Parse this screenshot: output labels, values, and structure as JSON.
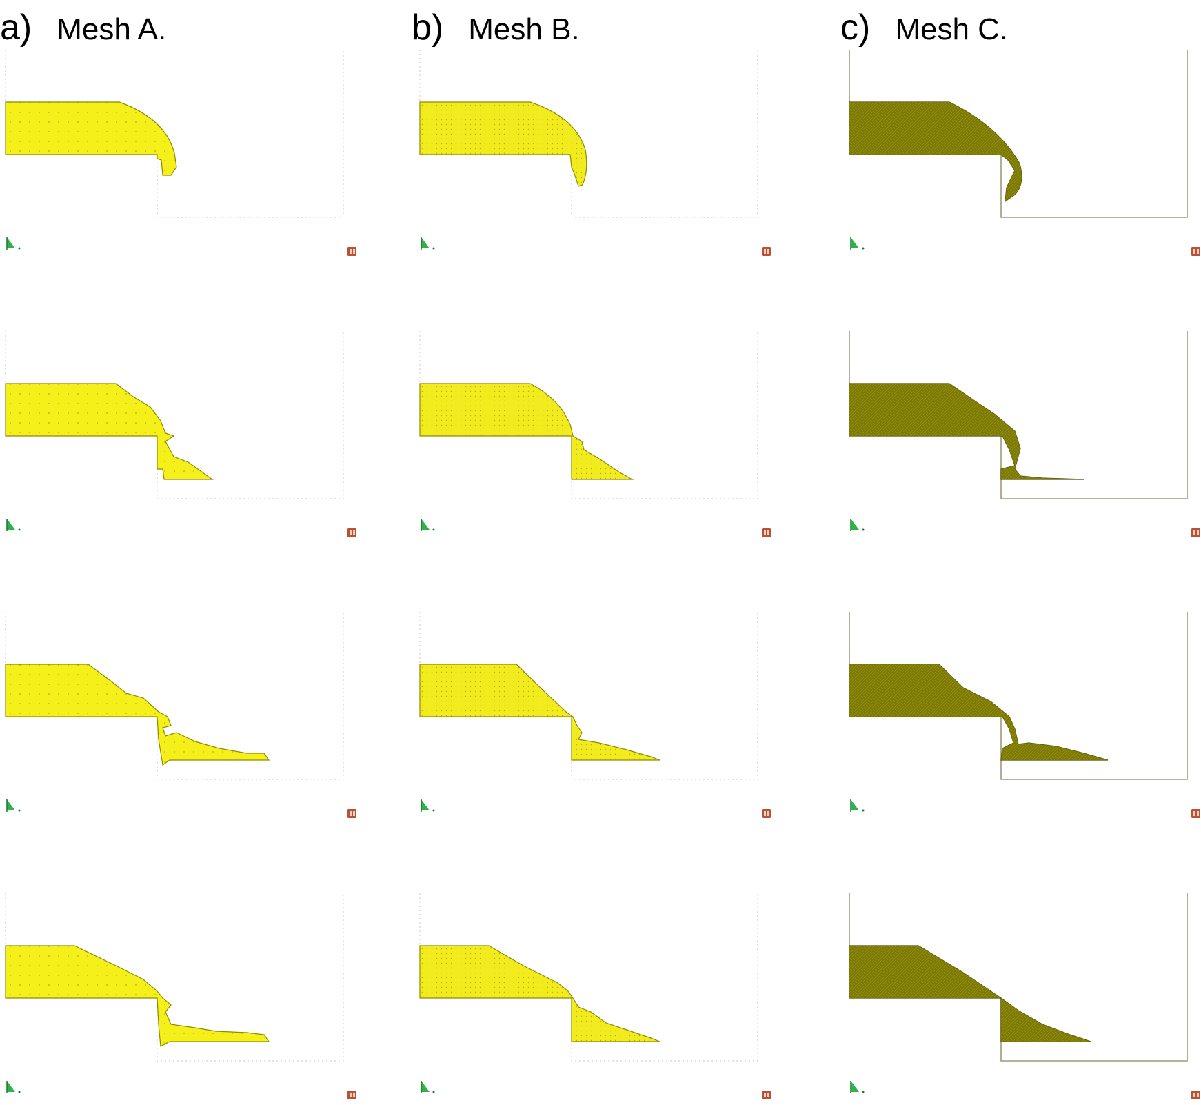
{
  "columns": [
    {
      "letter": "a)",
      "title": "Mesh A.",
      "fill": "#f5ef1a",
      "stroke": "#8f8a00",
      "mesh": "coarse"
    },
    {
      "letter": "b)",
      "title": "Mesh B.",
      "fill": "#f2ec1e",
      "stroke": "#8f8a00",
      "mesh": "medium"
    },
    {
      "letter": "c)",
      "title": "Mesh C.",
      "fill": "#7d7a06",
      "stroke": "#4f4c00",
      "mesh": "fine"
    }
  ],
  "icons": {
    "axis": "axis-triad-icon",
    "logo": "software-logo-icon"
  },
  "colors": {
    "background": "#ffffff",
    "axis_green": "#2fb24a",
    "logo_brown": "#b5523a",
    "boundary": "#9c9a7a"
  }
}
